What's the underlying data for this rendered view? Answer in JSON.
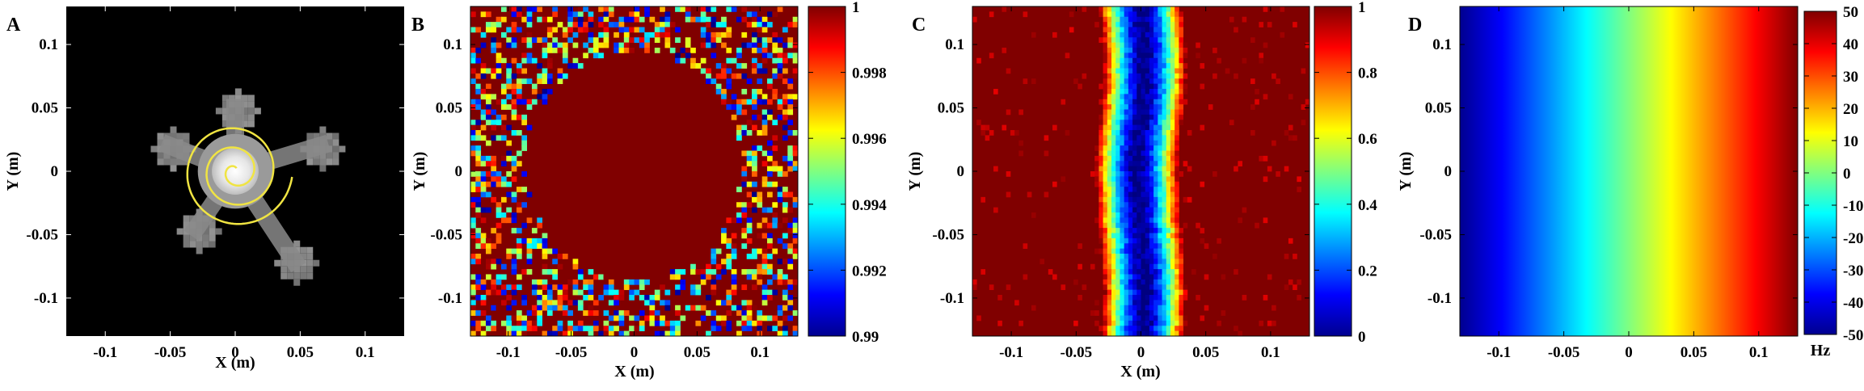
{
  "figure": {
    "panels": [
      {
        "id": "A",
        "label": "A",
        "type": "image",
        "xlabel": "X (m)",
        "ylabel": "Y (m)",
        "xticks": [
          "-0.1",
          "-0.05",
          "0",
          "0.05",
          "0.1"
        ],
        "yticks": [
          "0.1",
          "0.05",
          "0",
          "-0.05",
          "-0.1"
        ],
        "colorbar": null
      },
      {
        "id": "B",
        "label": "B",
        "type": "heatmap",
        "xlabel": "X (m)",
        "ylabel": "Y (m)",
        "xticks": [
          "-0.1",
          "-0.05",
          "0",
          "0.05",
          "0.1"
        ],
        "yticks": [
          "0.1",
          "0.05",
          "0",
          "-0.05",
          "-0.1"
        ],
        "colorbar": {
          "ticks": [
            "1",
            "0.998",
            "0.996",
            "0.994",
            "0.992",
            "0.99"
          ],
          "unit": ""
        }
      },
      {
        "id": "C",
        "label": "C",
        "type": "heatmap",
        "xlabel": "X (m)",
        "ylabel": "Y (m)",
        "xticks": [
          "-0.1",
          "-0.05",
          "0",
          "0.05",
          "0.1"
        ],
        "yticks": [
          "0.1",
          "0.05",
          "0",
          "-0.05",
          "-0.1"
        ],
        "colorbar": {
          "ticks": [
            "1",
            "0.8",
            "0.6",
            "0.4",
            "0.2",
            "0"
          ],
          "unit": ""
        }
      },
      {
        "id": "D",
        "label": "D",
        "type": "heatmap",
        "xlabel": "",
        "ylabel": "Y (m)",
        "xticks": [
          "-0.1",
          "-0.05",
          "0",
          "0.05",
          "0.1"
        ],
        "yticks": [
          "0.1",
          "0.05",
          "0",
          "-0.05",
          "-0.1"
        ],
        "colorbar": {
          "ticks": [
            "50",
            "40",
            "30",
            "20",
            "10",
            "0",
            "-10",
            "-20",
            "-30",
            "-40",
            "-50"
          ],
          "unit": "Hz"
        }
      }
    ]
  },
  "chart_data": [
    {
      "panel": "A",
      "type": "heatmap",
      "title": "",
      "xlabel": "X (m)",
      "ylabel": "Y (m)",
      "xlim": [
        -0.13,
        0.13
      ],
      "ylim": [
        -0.13,
        0.13
      ],
      "description_data": {
        "center_blob": {
          "x": 0.0,
          "y": 0.0,
          "radius": 0.018
        },
        "arms": [
          {
            "x": 0.0,
            "y": 0.05,
            "size": 0.03
          },
          {
            "x": -0.05,
            "y": 0.02,
            "size": 0.03
          },
          {
            "x": 0.065,
            "y": 0.02,
            "size": 0.03
          },
          {
            "x": -0.03,
            "y": -0.045,
            "size": 0.03
          },
          {
            "x": 0.045,
            "y": -0.07,
            "size": 0.03
          }
        ],
        "spiral_color": "#f0e442"
      }
    },
    {
      "panel": "B",
      "type": "heatmap",
      "xlabel": "X (m)",
      "ylabel": "Y (m)",
      "xlim": [
        -0.13,
        0.13
      ],
      "ylim": [
        -0.13,
        0.13
      ],
      "clim": [
        0.99,
        1.0
      ],
      "uniform_value_region": {
        "center": [
          0.0,
          0.005
        ],
        "rx": 0.085,
        "ry": 0.09,
        "value": 1.0
      },
      "background": "noisy values between 0.99 and 1.0"
    },
    {
      "panel": "C",
      "type": "heatmap",
      "xlabel": "X (m)",
      "ylabel": "Y (m)",
      "xlim": [
        -0.13,
        0.13
      ],
      "ylim": [
        -0.13,
        0.13
      ],
      "clim": [
        0,
        1
      ],
      "profile": "value ~1 everywhere except a vertical trough centered at x=0 with minimum ~0 and half-width ~0.03 m"
    },
    {
      "panel": "D",
      "type": "heatmap",
      "xlabel": "",
      "ylabel": "Y (m)",
      "xlim": [
        -0.13,
        0.13
      ],
      "ylim": [
        -0.13,
        0.13
      ],
      "clim": [
        -50,
        50
      ],
      "colorbar_unit": "Hz",
      "profile": "linear gradient in x from -50 Hz at x=-0.13 to +50 Hz at x=0.13, constant in y"
    }
  ],
  "colors": {
    "jet_dark_blue": "#00008f",
    "jet_dark_red": "#800000",
    "spiral_yellow": "#f0e442"
  }
}
